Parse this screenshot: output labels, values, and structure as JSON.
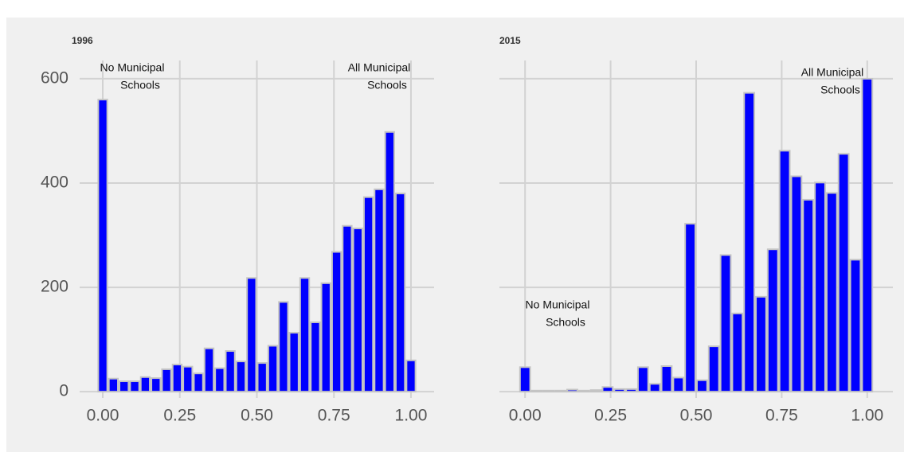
{
  "chart_data": [
    {
      "type": "histogram",
      "title": "1996",
      "bins": [
        -0.0172,
        0.0172,
        0.0517,
        0.0862,
        0.1207,
        0.1552,
        0.1897,
        0.2241,
        0.2586,
        0.2931,
        0.3276,
        0.3621,
        0.3966,
        0.431,
        0.4655,
        0.5,
        0.5345,
        0.569,
        0.6034,
        0.6379,
        0.6724,
        0.7069,
        0.7414,
        0.7759,
        0.8103,
        0.8448,
        0.8793,
        0.9138,
        0.9483,
        0.9828,
        1.0172
      ],
      "values": [
        560,
        25,
        20,
        20,
        28,
        26,
        43,
        52,
        48,
        35,
        83,
        45,
        78,
        58,
        218,
        55,
        88,
        172,
        113,
        218,
        133,
        208,
        268,
        318,
        313,
        373,
        388,
        498,
        380,
        60
      ],
      "color": "#0000ff",
      "xlim": [
        -0.075,
        1.075
      ],
      "ylim": [
        -12,
        635
      ],
      "xticks": [
        {
          "value": 0,
          "label": "0.00"
        },
        {
          "value": 0.25,
          "label": "0.25"
        },
        {
          "value": 0.5,
          "label": "0.50"
        },
        {
          "value": 0.75,
          "label": "0.75"
        },
        {
          "value": 1,
          "label": "1.00"
        }
      ],
      "yticks": [
        0,
        200,
        400,
        600
      ],
      "ytick_labels": true,
      "grid": true,
      "annotations": [
        {
          "lines": [
            "No Municipal",
            "Schools"
          ]
        },
        {
          "lines": [
            "All Municipal",
            "Schools"
          ]
        }
      ]
    },
    {
      "type": "histogram",
      "title": "2015",
      "bins": [
        -0.0172,
        0.0172,
        0.0517,
        0.0862,
        0.1207,
        0.1552,
        0.1897,
        0.2241,
        0.2586,
        0.2931,
        0.3276,
        0.3621,
        0.3966,
        0.431,
        0.4655,
        0.5,
        0.5345,
        0.569,
        0.6034,
        0.6379,
        0.6724,
        0.7069,
        0.7414,
        0.7759,
        0.8103,
        0.8448,
        0.8793,
        0.9138,
        0.9483,
        0.9828,
        1.0172
      ],
      "values": [
        47,
        2,
        2,
        2,
        4,
        2,
        3,
        9,
        5,
        5,
        47,
        15,
        49,
        27,
        322,
        22,
        87,
        262,
        150,
        573,
        182,
        273,
        462,
        413,
        368,
        401,
        381,
        456,
        253,
        600
      ],
      "color": "#0000ff",
      "xlim": [
        -0.075,
        1.075
      ],
      "ylim": [
        -12,
        635
      ],
      "xticks": [
        {
          "value": 0,
          "label": "0.00"
        },
        {
          "value": 0.25,
          "label": "0.25"
        },
        {
          "value": 0.5,
          "label": "0.50"
        },
        {
          "value": 0.75,
          "label": "0.75"
        },
        {
          "value": 1,
          "label": "1.00"
        }
      ],
      "yticks": [
        0,
        200,
        400,
        600
      ],
      "ytick_labels": false,
      "grid": true,
      "annotations": [
        {
          "lines": [
            "No Municipal",
            "Schools"
          ]
        },
        {
          "lines": [
            "All Municipal",
            "Schools"
          ]
        }
      ]
    }
  ]
}
